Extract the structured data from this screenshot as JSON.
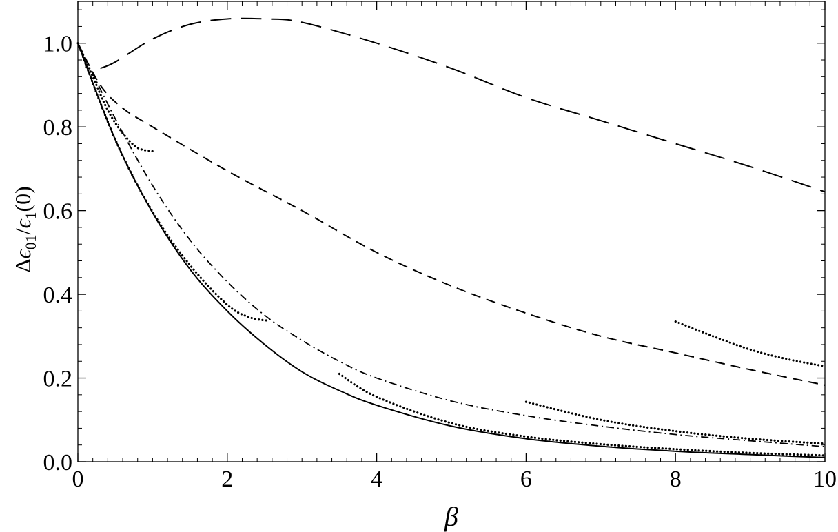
{
  "chart_data": {
    "type": "line",
    "title": "",
    "xlabel": "β",
    "ylabel": "Δϵ01/ϵ1(0)",
    "ylabel_parts": {
      "delta": "Δ",
      "eps": "ϵ",
      "sub1": "01",
      "slash": "/",
      "eps2": "ϵ",
      "sub2": "1",
      "tail": "(0)"
    },
    "xlim": [
      0,
      10
    ],
    "ylim": [
      0,
      1.1
    ],
    "grid": false,
    "legend": "none",
    "x_ticks": [
      0,
      2,
      4,
      6,
      8,
      10
    ],
    "x_tick_labels": [
      "0",
      "2",
      "4",
      "6",
      "8",
      "10"
    ],
    "y_ticks": [
      0,
      0.2,
      0.4,
      0.6,
      0.8,
      1.0
    ],
    "y_tick_labels": [
      "0.0",
      "0.2",
      "0.4",
      "0.6",
      "0.8",
      "1.0"
    ],
    "series": [
      {
        "style": "solid",
        "x": [
          0,
          0.5,
          1,
          1.5,
          2,
          2.5,
          3,
          3.5,
          4,
          5,
          6,
          7,
          8,
          9,
          10
        ],
        "y": [
          1.0,
          0.77,
          0.595,
          0.46,
          0.36,
          0.28,
          0.215,
          0.17,
          0.135,
          0.085,
          0.055,
          0.037,
          0.025,
          0.017,
          0.01
        ]
      },
      {
        "style": "long-dash",
        "x": [
          0.3,
          0.5,
          1,
          1.5,
          2,
          2.5,
          3,
          4,
          5,
          6,
          7,
          8,
          9,
          10
        ],
        "y": [
          0.94,
          0.955,
          1.01,
          1.045,
          1.058,
          1.058,
          1.05,
          1.0,
          0.94,
          0.87,
          0.815,
          0.76,
          0.705,
          0.645
        ]
      },
      {
        "style": "dash",
        "x": [
          0,
          0.3,
          0.6,
          1,
          2,
          3,
          4,
          5,
          6,
          7,
          8,
          9,
          10
        ],
        "y": [
          1.0,
          0.9,
          0.845,
          0.8,
          0.695,
          0.6,
          0.5,
          0.42,
          0.355,
          0.3,
          0.26,
          0.22,
          0.183
        ]
      },
      {
        "style": "dash-dot",
        "x": [
          0,
          0.5,
          1,
          1.5,
          2,
          2.5,
          3,
          3.5,
          4,
          5,
          6,
          7,
          8,
          9,
          10
        ],
        "y": [
          1.0,
          0.82,
          0.66,
          0.53,
          0.43,
          0.35,
          0.29,
          0.24,
          0.2,
          0.145,
          0.11,
          0.085,
          0.065,
          0.05,
          0.036
        ]
      },
      {
        "style": "dotted",
        "segments": [
          {
            "x": [
              0.05,
              0.2,
              0.4,
              0.6,
              0.8,
              1.0
            ],
            "y": [
              0.98,
              0.92,
              0.84,
              0.785,
              0.75,
              0.742
            ]
          },
          {
            "x": [
              0,
              0.5,
              1,
              1.5,
              2,
              2.3,
              2.55
            ],
            "y": [
              1.0,
              0.77,
              0.597,
              0.47,
              0.375,
              0.345,
              0.337
            ]
          },
          {
            "x": [
              3.5,
              4,
              5,
              6,
              7,
              8,
              9,
              10
            ],
            "y": [
              0.21,
              0.155,
              0.092,
              0.06,
              0.042,
              0.03,
              0.021,
              0.015
            ]
          },
          {
            "x": [
              6,
              7,
              8,
              9,
              10
            ],
            "y": [
              0.143,
              0.1,
              0.073,
              0.055,
              0.043
            ]
          },
          {
            "x": [
              8,
              8.5,
              9,
              9.5,
              10
            ],
            "y": [
              0.335,
              0.3,
              0.268,
              0.245,
              0.228
            ]
          }
        ]
      }
    ]
  }
}
